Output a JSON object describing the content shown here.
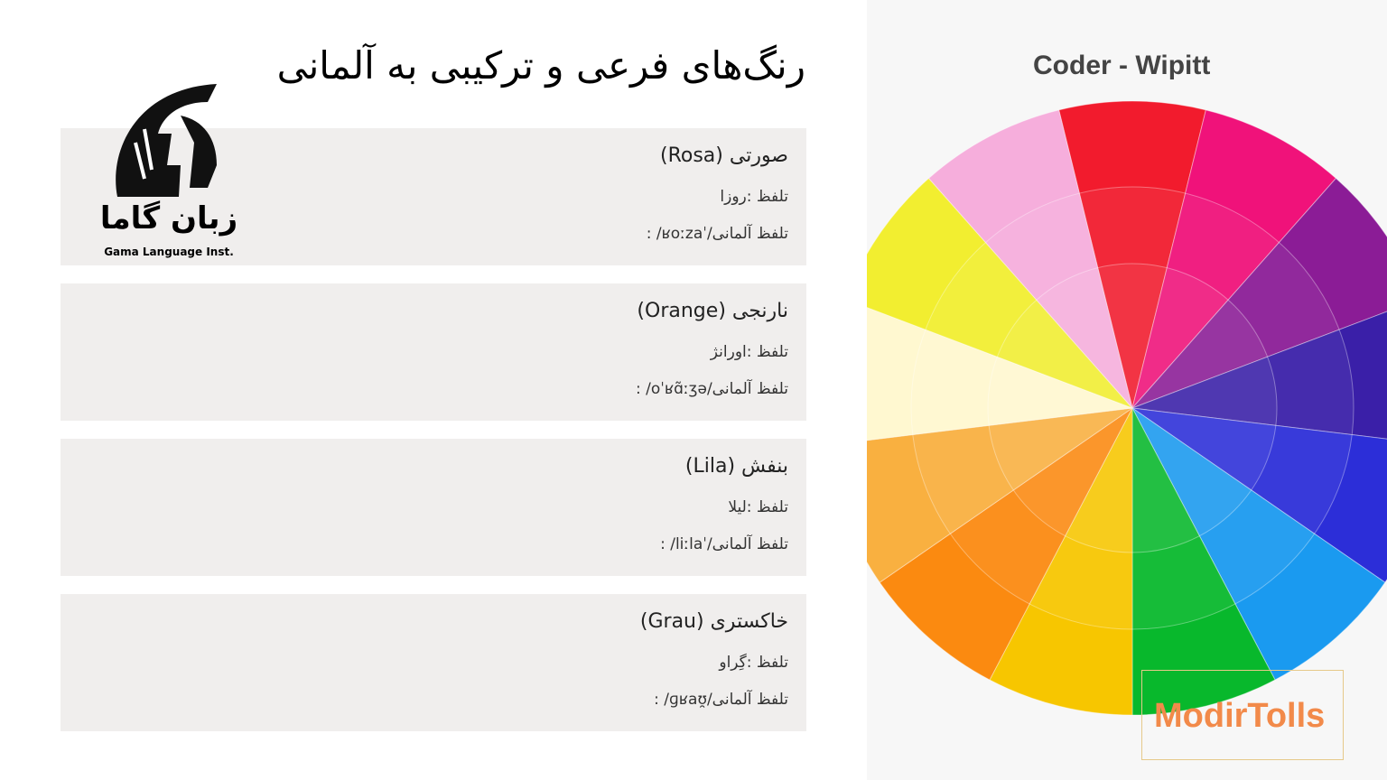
{
  "header": {
    "title": "رنگ‌های فرعی و ترکیبی به آلمانی"
  },
  "logo": {
    "name": "زبان گاما",
    "subtitle": "Gama Language Inst."
  },
  "cards": [
    {
      "name": "صورتی (Rosa)",
      "pronunciation": "تلفظ :روزا",
      "ipa": "تلفظ آلمانی/ˈʁoːza/ :"
    },
    {
      "name": "نارنجی (Orange)",
      "pronunciation": "تلفظ :اورانژ",
      "ipa": "تلفظ آلمانی/oˈʁɑ̃ːʒə/ :"
    },
    {
      "name": "بنفش (Lila)",
      "pronunciation": "تلفظ :لیلا",
      "ipa": "تلفظ آلمانی/ˈliːla/ :"
    },
    {
      "name": "خاکستری (Grau)",
      "pronunciation": "تلفظ :گِراو",
      "ipa": "تلفظ آلمانی/ɡʁaʊ̯/ :"
    }
  ],
  "image": {
    "caption": "Coder - Wipitt",
    "watermark": "ModirTolls"
  }
}
